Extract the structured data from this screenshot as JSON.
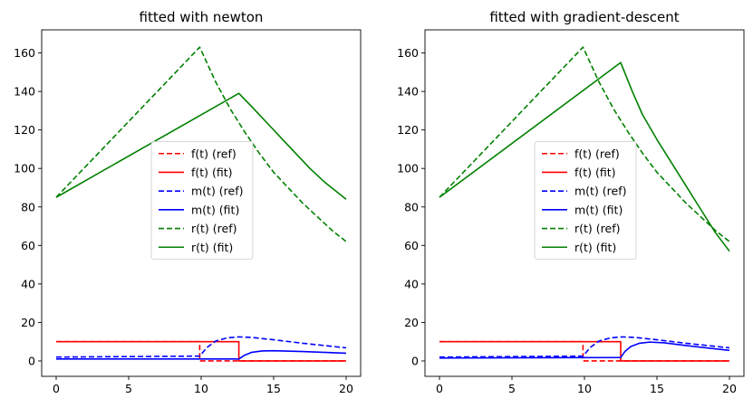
{
  "colors": {
    "f": "#ff0000",
    "m": "#0000ff",
    "r": "#008000",
    "axes": "#000000",
    "background": "#ffffff"
  },
  "chart_data": [
    {
      "type": "line",
      "title": "fitted with newton",
      "xlabel": "",
      "ylabel": "",
      "xlim": [
        -1,
        21
      ],
      "ylim": [
        -8,
        172
      ],
      "xticks": [
        0,
        5,
        10,
        15,
        20
      ],
      "yticks": [
        0,
        20,
        40,
        60,
        80,
        100,
        120,
        140,
        160
      ],
      "grid": false,
      "legend_position": "center",
      "series": [
        {
          "name": "f(t) (ref)",
          "key": "f",
          "dash": true,
          "x": [
            0,
            9.9,
            9.9,
            20
          ],
          "y": [
            10,
            10,
            0,
            0
          ]
        },
        {
          "name": "f(t) (fit)",
          "key": "f",
          "dash": false,
          "x": [
            0,
            12.6,
            12.6,
            20
          ],
          "y": [
            10,
            10,
            0,
            0
          ]
        },
        {
          "name": "m(t) (ref)",
          "key": "m",
          "dash": true,
          "x": [
            0,
            9.9,
            10.4,
            11,
            11.8,
            12.6,
            13.5,
            15,
            17,
            20
          ],
          "y": [
            2,
            2.5,
            7,
            10.3,
            12,
            12.5,
            12.2,
            11,
            9.2,
            6.8
          ]
        },
        {
          "name": "m(t) (fit)",
          "key": "m",
          "dash": false,
          "x": [
            0,
            12.6,
            13,
            13.5,
            14.2,
            15,
            17,
            20
          ],
          "y": [
            1,
            1,
            3,
            4.5,
            5.2,
            5.3,
            4.9,
            4
          ]
        },
        {
          "name": "r(t) (ref)",
          "key": "r",
          "dash": true,
          "x": [
            0,
            9.9,
            11,
            12,
            13,
            14,
            15,
            16,
            17,
            18,
            19,
            20
          ],
          "y": [
            85,
            163,
            145,
            131,
            119,
            108,
            98,
            90,
            82,
            75,
            68,
            62
          ]
        },
        {
          "name": "r(t) (fit)",
          "key": "r",
          "dash": false,
          "x": [
            0,
            12.6,
            13.5,
            14.5,
            15.5,
            16.5,
            17.5,
            18.5,
            20
          ],
          "y": [
            85,
            139,
            132,
            124,
            116,
            108,
            100,
            93,
            84
          ]
        }
      ]
    },
    {
      "type": "line",
      "title": "fitted with gradient-descent",
      "xlabel": "",
      "ylabel": "",
      "xlim": [
        -1,
        21
      ],
      "ylim": [
        -8,
        172
      ],
      "xticks": [
        0,
        5,
        10,
        15,
        20
      ],
      "yticks": [
        0,
        20,
        40,
        60,
        80,
        100,
        120,
        140,
        160
      ],
      "grid": false,
      "legend_position": "center",
      "series": [
        {
          "name": "f(t) (ref)",
          "key": "f",
          "dash": true,
          "x": [
            0,
            9.9,
            9.9,
            20
          ],
          "y": [
            10,
            10,
            0,
            0
          ]
        },
        {
          "name": "f(t) (fit)",
          "key": "f",
          "dash": false,
          "x": [
            0,
            12.5,
            12.5,
            20
          ],
          "y": [
            10,
            10,
            0,
            0
          ]
        },
        {
          "name": "m(t) (ref)",
          "key": "m",
          "dash": true,
          "x": [
            0,
            9.9,
            10.4,
            11,
            11.8,
            12.6,
            13.5,
            15,
            17,
            20
          ],
          "y": [
            2,
            2.5,
            7,
            10.3,
            12,
            12.5,
            12.2,
            11,
            9.2,
            6.8
          ]
        },
        {
          "name": "m(t) (fit)",
          "key": "m",
          "dash": false,
          "x": [
            0,
            12.5,
            12.8,
            13.2,
            13.8,
            14.5,
            15.5,
            17,
            20
          ],
          "y": [
            1.5,
            1.8,
            5,
            7.5,
            9.2,
            9.8,
            9.4,
            8,
            5.5
          ]
        },
        {
          "name": "r(t) (ref)",
          "key": "r",
          "dash": true,
          "x": [
            0,
            9.9,
            11,
            12,
            13,
            14,
            15,
            16,
            17,
            18,
            19,
            20
          ],
          "y": [
            85,
            163,
            145,
            131,
            119,
            108,
            98,
            90,
            82,
            75,
            68,
            62
          ]
        },
        {
          "name": "r(t) (fit)",
          "key": "r",
          "dash": false,
          "x": [
            0,
            12.5,
            13.3,
            14,
            15,
            16,
            17,
            18,
            19,
            20
          ],
          "y": [
            85,
            155,
            140,
            128,
            115,
            103,
            91,
            79,
            67,
            57
          ]
        }
      ]
    }
  ]
}
